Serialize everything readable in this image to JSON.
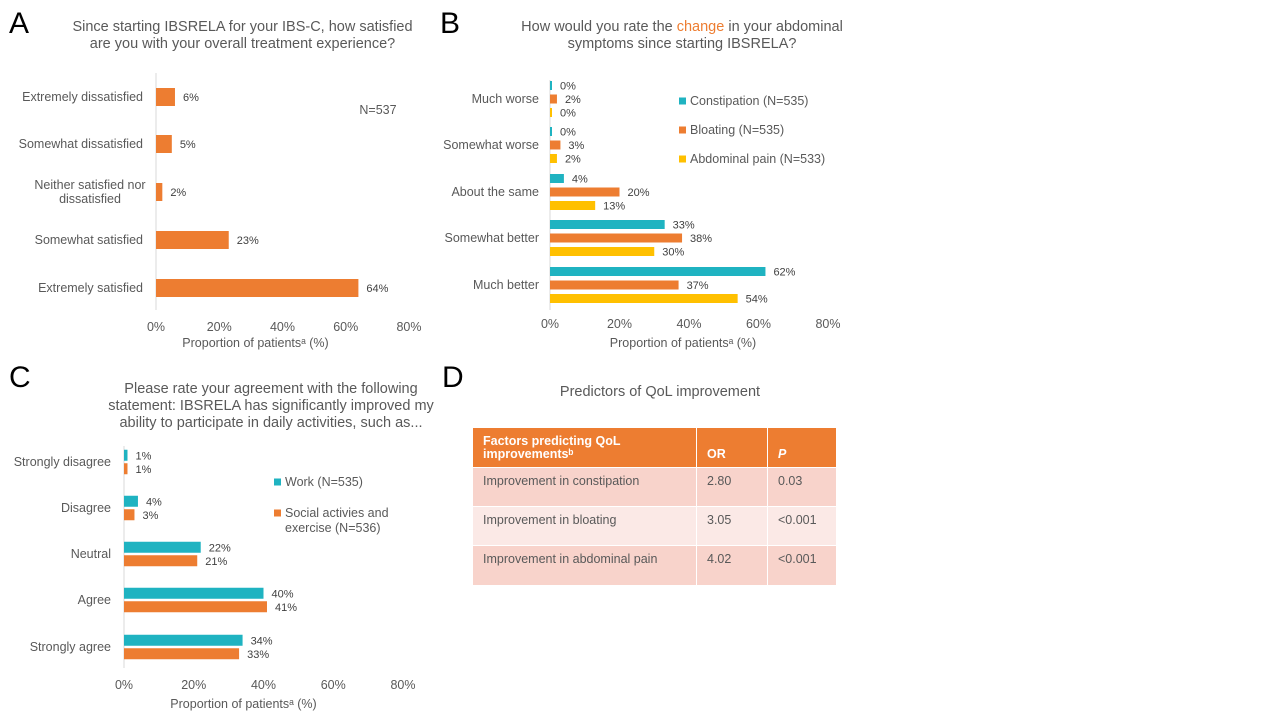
{
  "panels": {
    "a": {
      "letter": "A",
      "title_line1": "Since starting IBSRELA for your IBS-C, how satisfied",
      "title_line2": "are you with your overall treatment experience?"
    },
    "b": {
      "letter": "B",
      "title_line1_pre": "How would you rate the ",
      "title_line1_hl": "change",
      "title_line1_post": " in your abdominal",
      "title_line2": "symptoms since starting IBSRELA?"
    },
    "c": {
      "letter": "C",
      "title_line1": "Please rate your agreement with the following",
      "title_line2": "statement: IBSRELA has significantly improved my",
      "title_line3": "ability to participate in daily activities, such as..."
    },
    "d": {
      "letter": "D",
      "title": "Predictors of QoL improvement"
    }
  },
  "chart_data": [
    {
      "id": "A",
      "type": "bar",
      "orientation": "horizontal",
      "categories": [
        "Extremely dissatisfied",
        "Somewhat dissatisfied",
        "Neither satisfied nor dissatisfied",
        "Somewhat satisfied",
        "Extremely satisfied"
      ],
      "category_lines": [
        [
          "Extremely dissatisfied"
        ],
        [
          "Somewhat dissatisfied"
        ],
        [
          "Neither satisfied nor",
          "dissatisfied"
        ],
        [
          "Somewhat satisfied"
        ],
        [
          "Extremely satisfied"
        ]
      ],
      "series": [
        {
          "values": [
            6,
            5,
            2,
            23,
            64
          ],
          "labels": [
            "6%",
            "5%",
            "2%",
            "23%",
            "64%"
          ],
          "color": "#ED7D31"
        }
      ],
      "annotation": "N=537",
      "xlabel": "Proportion of patientsᵃ (%)",
      "xlim": [
        0,
        80
      ],
      "xticks": [
        "0%",
        "20%",
        "40%",
        "60%",
        "80%"
      ]
    },
    {
      "id": "B",
      "type": "bar",
      "orientation": "horizontal",
      "categories": [
        "Much worse",
        "Somewhat worse",
        "About the same",
        "Somewhat better",
        "Much better"
      ],
      "series": [
        {
          "name": "Constipation (N=535)",
          "values": [
            0,
            0,
            4,
            33,
            62
          ],
          "labels": [
            "0%",
            "0%",
            "4%",
            "33%",
            "62%"
          ],
          "color": "#1FB3C1"
        },
        {
          "name": "Bloating (N=535)",
          "values": [
            2,
            3,
            20,
            38,
            37
          ],
          "labels": [
            "2%",
            "3%",
            "20%",
            "38%",
            "37%"
          ],
          "color": "#ED7D31"
        },
        {
          "name": "Abdominal pain (N=533)",
          "values": [
            0,
            2,
            13,
            30,
            54
          ],
          "labels": [
            "0%",
            "2%",
            "13%",
            "30%",
            "54%"
          ],
          "color": "#FFC000"
        }
      ],
      "xlabel": "Proportion of patientsᵃ (%)",
      "xlim": [
        0,
        80
      ],
      "xticks": [
        "0%",
        "20%",
        "40%",
        "60%",
        "80%"
      ],
      "legend_position": "right"
    },
    {
      "id": "C",
      "type": "bar",
      "orientation": "horizontal",
      "categories": [
        "Strongly disagree",
        "Disagree",
        "Neutral",
        "Agree",
        "Strongly agree"
      ],
      "series": [
        {
          "name": "Work (N=535)",
          "values": [
            1,
            4,
            22,
            40,
            34
          ],
          "labels": [
            "1%",
            "4%",
            "22%",
            "40%",
            "34%"
          ],
          "color": "#1FB3C1"
        },
        {
          "name": "Social activies and exercise (N=536)",
          "values": [
            1,
            3,
            21,
            41,
            33
          ],
          "labels": [
            "1%",
            "3%",
            "21%",
            "41%",
            "33%"
          ],
          "color": "#ED7D31"
        }
      ],
      "legend_lines": [
        [
          "Work (N=535)"
        ],
        [
          "Social activies and",
          "exercise (N=536)"
        ]
      ],
      "xlabel": "Proportion of patientsᵃ (%)",
      "xlim": [
        0,
        80
      ],
      "xticks": [
        "0%",
        "20%",
        "40%",
        "60%",
        "80%"
      ],
      "legend_position": "right"
    },
    {
      "id": "D",
      "type": "table",
      "columns": [
        "Factors predicting QoL improvementsᵇ",
        "OR",
        "P"
      ],
      "rows": [
        [
          "Improvement in constipation",
          "2.80",
          "0.03"
        ],
        [
          "Improvement in bloating",
          "3.05",
          "<0.001"
        ],
        [
          "Improvement in abdominal pain",
          "4.02",
          "<0.001"
        ]
      ]
    }
  ]
}
